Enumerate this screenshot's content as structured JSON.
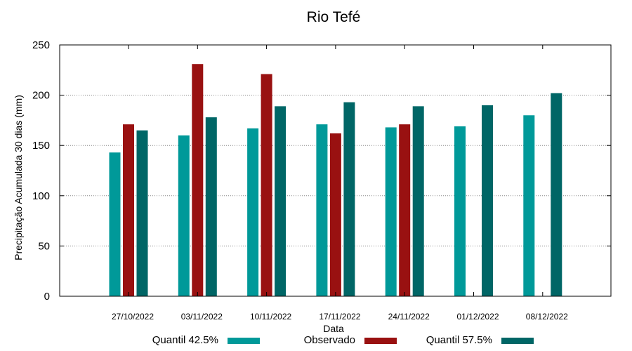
{
  "chart_data": {
    "type": "bar",
    "title": "Rio Tefé",
    "xlabel": "Data",
    "ylabel": "Precipitação Acumulada 30 dias (mm)",
    "ylim": [
      0,
      250
    ],
    "yticks": [
      0,
      50,
      100,
      150,
      200,
      250
    ],
    "grid": "horizontal dotted",
    "legend_position": "bottom",
    "categories": [
      "27/10/2022",
      "03/11/2022",
      "10/11/2022",
      "17/11/2022",
      "24/11/2022",
      "01/12/2022",
      "08/12/2022"
    ],
    "series": [
      {
        "name": "Quantil 42.5%",
        "color": "#009999",
        "values": [
          143,
          160,
          167,
          171,
          168,
          169,
          180
        ]
      },
      {
        "name": "Observado",
        "color": "#991111",
        "values": [
          171,
          231,
          221,
          162,
          171,
          null,
          null
        ]
      },
      {
        "name": "Quantil 57.5%",
        "color": "#006666",
        "values": [
          165,
          178,
          189,
          193,
          189,
          190,
          202
        ]
      }
    ]
  }
}
